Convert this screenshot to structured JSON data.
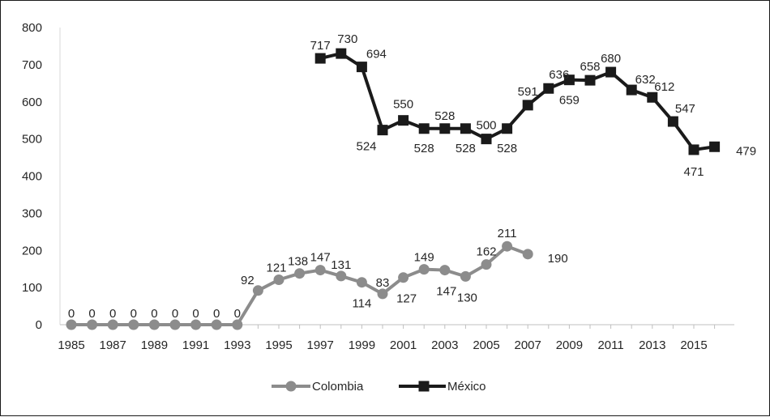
{
  "chart_data": {
    "type": "line",
    "title": "",
    "xlabel": "",
    "ylabel": "",
    "ylim": [
      0,
      800
    ],
    "yticks": [
      0,
      100,
      200,
      300,
      400,
      500,
      600,
      700,
      800
    ],
    "xlim": [
      1985,
      2016
    ],
    "xtick_labels": [
      "1985",
      "1987",
      "1989",
      "1991",
      "1993",
      "1995",
      "1997",
      "1999",
      "2001",
      "2003",
      "2005",
      "2007",
      "2009",
      "2011",
      "2013",
      "2015"
    ],
    "grid": false,
    "legend_position": "bottom",
    "series": [
      {
        "name": "Colombia",
        "color": "#8c8c8c",
        "marker": "circle",
        "x": [
          1985,
          1986,
          1987,
          1988,
          1989,
          1990,
          1991,
          1992,
          1993,
          1994,
          1995,
          1996,
          1997,
          1998,
          1999,
          2000,
          2001,
          2002,
          2003,
          2004,
          2005,
          2006,
          2007
        ],
        "values": [
          0,
          0,
          0,
          0,
          0,
          0,
          0,
          0,
          0,
          92,
          121,
          138,
          147,
          131,
          114,
          83,
          127,
          149,
          147,
          130,
          162,
          211,
          190
        ]
      },
      {
        "name": "México",
        "color": "#1a1a1a",
        "marker": "square",
        "x": [
          1997,
          1998,
          1999,
          2000,
          2001,
          2002,
          2003,
          2004,
          2005,
          2006,
          2007,
          2008,
          2009,
          2010,
          2011,
          2012,
          2013,
          2014,
          2015,
          2016
        ],
        "values": [
          717,
          730,
          694,
          524,
          550,
          528,
          528,
          528,
          500,
          528,
          591,
          636,
          659,
          658,
          680,
          632,
          612,
          547,
          471,
          479
        ]
      }
    ]
  }
}
